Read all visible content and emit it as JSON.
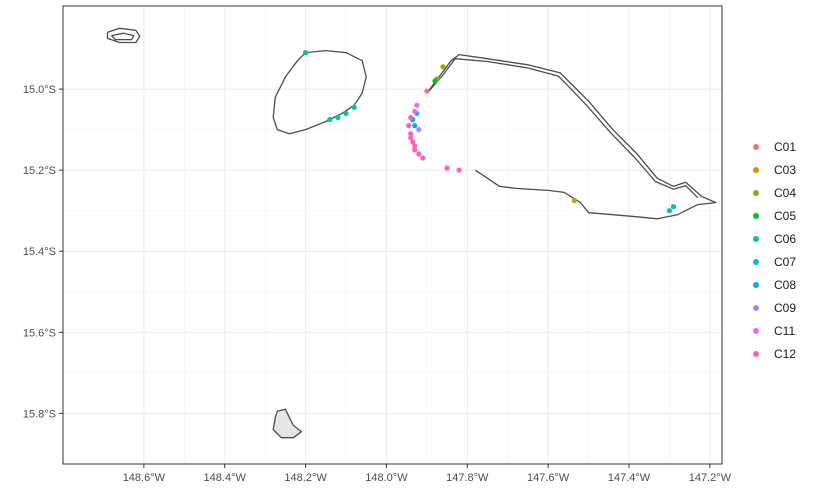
{
  "chart_data": {
    "type": "scatter",
    "subtype": "map",
    "title": "",
    "xlabel": "",
    "ylabel": "",
    "xlim": [
      -148.8,
      -147.17
    ],
    "ylim": [
      -15.925,
      -14.795
    ],
    "grid": true,
    "legend_position": "right",
    "x_ticks": [
      {
        "value": -148.6,
        "label": "148.6°W"
      },
      {
        "value": -148.4,
        "label": "148.4°W"
      },
      {
        "value": -148.2,
        "label": "148.2°W"
      },
      {
        "value": -148.0,
        "label": "148.0°W"
      },
      {
        "value": -147.8,
        "label": "147.8°W"
      },
      {
        "value": -147.6,
        "label": "147.6°W"
      },
      {
        "value": -147.4,
        "label": "147.4°W"
      },
      {
        "value": -147.2,
        "label": "147.2°W"
      }
    ],
    "y_ticks": [
      {
        "value": -15.0,
        "label": "15.0°S"
      },
      {
        "value": -15.2,
        "label": "15.2°S"
      },
      {
        "value": -15.4,
        "label": "15.4°S"
      },
      {
        "value": -15.6,
        "label": "15.6°S"
      },
      {
        "value": -15.8,
        "label": "15.8°S"
      }
    ],
    "land": [
      {
        "fill": "none",
        "points": [
          [
            -148.69,
            -14.86
          ],
          [
            -148.66,
            -14.85
          ],
          [
            -148.62,
            -14.855
          ],
          [
            -148.61,
            -14.87
          ],
          [
            -148.62,
            -14.885
          ],
          [
            -148.66,
            -14.885
          ],
          [
            -148.69,
            -14.875
          ],
          [
            -148.69,
            -14.86
          ]
        ]
      },
      {
        "fill": "none",
        "points": [
          [
            -148.68,
            -14.868
          ],
          [
            -148.65,
            -14.862
          ],
          [
            -148.625,
            -14.868
          ],
          [
            -148.63,
            -14.878
          ],
          [
            -148.67,
            -14.878
          ],
          [
            -148.68,
            -14.868
          ]
        ]
      },
      {
        "fill": "none",
        "points": [
          [
            -148.2,
            -14.91
          ],
          [
            -148.15,
            -14.905
          ],
          [
            -148.1,
            -14.91
          ],
          [
            -148.06,
            -14.93
          ],
          [
            -148.05,
            -14.97
          ],
          [
            -148.06,
            -15.01
          ],
          [
            -148.08,
            -15.04
          ],
          [
            -148.11,
            -15.06
          ],
          [
            -148.15,
            -15.08
          ],
          [
            -148.2,
            -15.1
          ],
          [
            -148.24,
            -15.11
          ],
          [
            -148.27,
            -15.1
          ],
          [
            -148.28,
            -15.07
          ],
          [
            -148.275,
            -15.02
          ],
          [
            -148.25,
            -14.97
          ],
          [
            -148.22,
            -14.93
          ],
          [
            -148.2,
            -14.91
          ]
        ]
      },
      {
        "fill": "none",
        "points": [
          [
            -147.9,
            -15.01
          ],
          [
            -147.87,
            -14.97
          ],
          [
            -147.84,
            -14.93
          ],
          [
            -147.82,
            -14.915
          ],
          [
            -147.75,
            -14.925
          ],
          [
            -147.65,
            -14.94
          ],
          [
            -147.57,
            -14.96
          ],
          [
            -147.54,
            -14.99
          ],
          [
            -147.5,
            -15.03
          ],
          [
            -147.44,
            -15.1
          ],
          [
            -147.38,
            -15.16
          ],
          [
            -147.33,
            -15.22
          ],
          [
            -147.29,
            -15.24
          ],
          [
            -147.26,
            -15.23
          ],
          [
            -147.22,
            -15.265
          ],
          [
            -147.185,
            -15.28
          ],
          [
            -147.23,
            -15.285
          ],
          [
            -147.28,
            -15.31
          ],
          [
            -147.33,
            -15.32
          ],
          [
            -147.38,
            -15.315
          ],
          [
            -147.44,
            -15.31
          ],
          [
            -147.5,
            -15.305
          ],
          [
            -147.52,
            -15.28
          ],
          [
            -147.56,
            -15.255
          ],
          [
            -147.6,
            -15.25
          ],
          [
            -147.68,
            -15.245
          ],
          [
            -147.72,
            -15.24
          ],
          [
            -147.78,
            -15.2
          ]
        ]
      },
      {
        "fill": "none",
        "points": [
          [
            -147.895,
            -15.005
          ],
          [
            -147.86,
            -14.965
          ],
          [
            -147.83,
            -14.925
          ],
          [
            -147.75,
            -14.932
          ],
          [
            -147.65,
            -14.948
          ],
          [
            -147.575,
            -14.968
          ],
          [
            -147.545,
            -14.998
          ],
          [
            -147.505,
            -15.04
          ],
          [
            -147.445,
            -15.108
          ],
          [
            -147.385,
            -15.17
          ],
          [
            -147.335,
            -15.228
          ],
          [
            -147.29,
            -15.247
          ],
          [
            -147.26,
            -15.238
          ],
          [
            -147.23,
            -15.268
          ]
        ]
      },
      {
        "fill": "#e5e5e5",
        "points": [
          [
            -148.27,
            -15.795
          ],
          [
            -148.25,
            -15.79
          ],
          [
            -148.24,
            -15.81
          ],
          [
            -148.23,
            -15.83
          ],
          [
            -148.21,
            -15.845
          ],
          [
            -148.23,
            -15.86
          ],
          [
            -148.26,
            -15.86
          ],
          [
            -148.28,
            -15.84
          ],
          [
            -148.275,
            -15.81
          ],
          [
            -148.27,
            -15.795
          ]
        ]
      }
    ],
    "series": [
      {
        "name": "C01",
        "color": "#F8766D",
        "points": [
          [
            -147.9,
            -15.005
          ]
        ]
      },
      {
        "name": "C03",
        "color": "#D39200",
        "points": [
          [
            -147.535,
            -15.275
          ]
        ]
      },
      {
        "name": "C04",
        "color": "#93AA00",
        "points": [
          [
            -147.86,
            -14.945
          ],
          [
            -147.875,
            -14.975
          ]
        ]
      },
      {
        "name": "C05",
        "color": "#00BA38",
        "points": [
          [
            -147.88,
            -14.98
          ]
        ]
      },
      {
        "name": "C06",
        "color": "#00C19F",
        "points": [
          [
            -148.2,
            -14.91
          ],
          [
            -148.08,
            -15.045
          ],
          [
            -148.1,
            -15.06
          ],
          [
            -148.12,
            -15.07
          ],
          [
            -148.14,
            -15.075
          ],
          [
            -147.3,
            -15.3
          ],
          [
            -147.29,
            -15.29
          ]
        ]
      },
      {
        "name": "C07",
        "color": "#00B9E3",
        "points": [
          [
            -147.925,
            -15.06
          ]
        ]
      },
      {
        "name": "C08",
        "color": "#00A9FF",
        "points": [
          [
            -147.935,
            -15.075
          ],
          [
            -147.93,
            -15.09
          ]
        ]
      },
      {
        "name": "C09",
        "color": "#9590FF",
        "points": [
          [
            -147.92,
            -15.1
          ]
        ]
      },
      {
        "name": "C11",
        "color": "#E76BF3",
        "points": [
          [
            -147.925,
            -15.04
          ],
          [
            -147.93,
            -15.055
          ]
        ]
      },
      {
        "name": "C12",
        "color": "#FF62BC",
        "points": [
          [
            -147.94,
            -15.07
          ],
          [
            -147.945,
            -15.09
          ],
          [
            -147.94,
            -15.11
          ],
          [
            -147.935,
            -15.13
          ],
          [
            -147.93,
            -15.15
          ],
          [
            -147.92,
            -15.16
          ],
          [
            -147.91,
            -15.17
          ],
          [
            -147.85,
            -15.195
          ],
          [
            -147.82,
            -15.2
          ],
          [
            -147.94,
            -15.12
          ],
          [
            -147.93,
            -15.14
          ]
        ]
      }
    ]
  }
}
